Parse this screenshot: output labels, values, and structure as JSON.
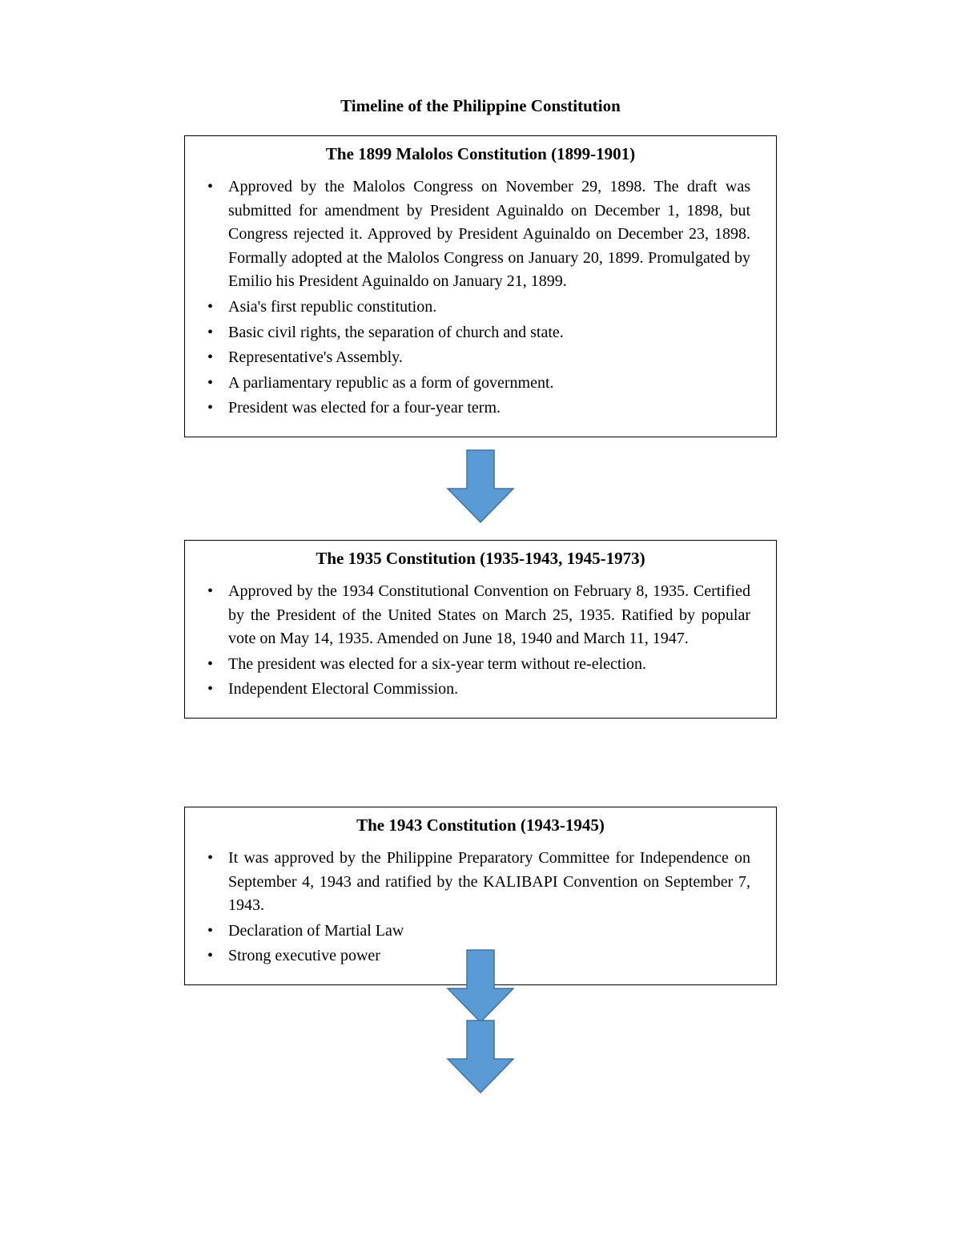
{
  "title": "Timeline of the Philippine Constitution",
  "arrow": {
    "fill": "#5b9bd5",
    "stroke": "#41719c",
    "width": 90,
    "height": 96
  },
  "sections": [
    {
      "heading": "The 1899 Malolos Constitution (1899-1901)",
      "bullets": [
        "Approved by the Malolos Congress on November 29, 1898. The draft was submitted for amendment by President Aguinaldo on December 1, 1898, but Congress rejected it. Approved by President Aguinaldo on December 23, 1898. Formally adopted at the Malolos Congress on January 20, 1899. Promulgated by Emilio his President Aguinaldo on January 21, 1899.",
        "Asia's first republic constitution.",
        "Basic civil rights, the separation of church and state.",
        "Representative's Assembly.",
        "A parliamentary republic as a form of government.",
        "President was elected for a four-year term."
      ]
    },
    {
      "heading": "The 1935 Constitution (1935-1943, 1945-1973)",
      "bullets": [
        "Approved by the 1934 Constitutional Convention on February 8, 1935. Certified by the President of the United States on March 25, 1935. Ratified by popular vote on May 14, 1935. Amended on June 18, 1940 and March 11, 1947.",
        "The president was elected for a six-year term without re-election.",
        "Independent Electoral Commission."
      ]
    },
    {
      "heading": "The 1943 Constitution (1943-1945)",
      "bullets": [
        "It was approved by the Philippine Preparatory Committee for Independence on September 4, 1943 and ratified by the KALIBAPI Convention on September 7, 1943.",
        "Declaration of Martial Law",
        "Strong executive power"
      ]
    }
  ]
}
